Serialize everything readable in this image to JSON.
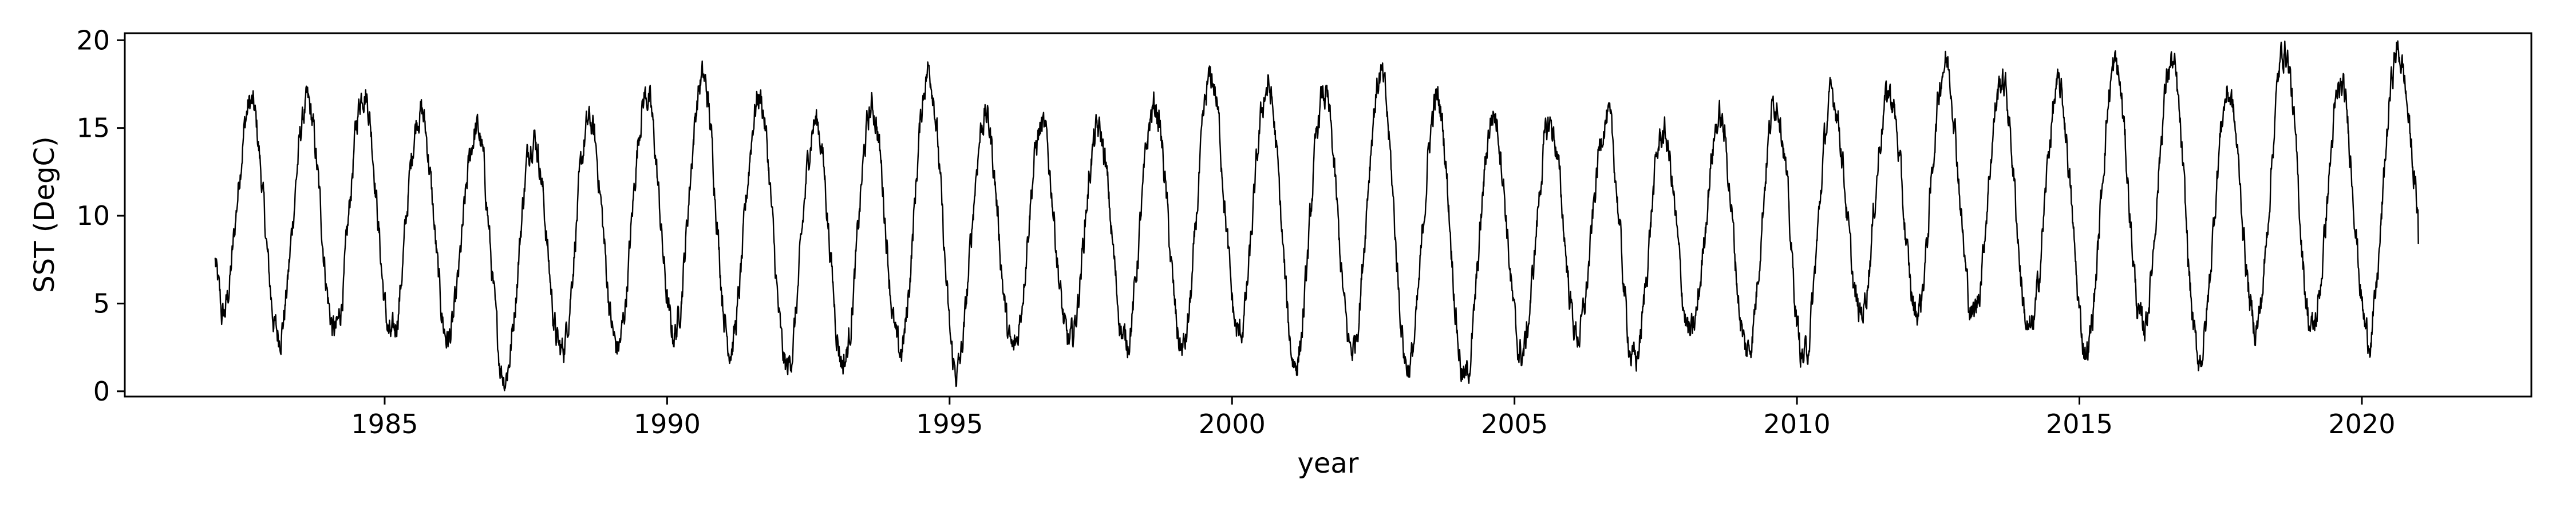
{
  "chart_data": {
    "type": "line",
    "title": "",
    "xlabel": "year",
    "ylabel": "SST (DegC)",
    "xlim": [
      1980.4,
      2023.0
    ],
    "ylim": [
      -0.3,
      20.4
    ],
    "x_ticks": [
      1985,
      1990,
      1995,
      2000,
      2005,
      2010,
      2015,
      2020
    ],
    "x_tick_labels": [
      "1985",
      "1990",
      "1995",
      "2000",
      "2005",
      "2010",
      "2015",
      "2020"
    ],
    "y_ticks": [
      0,
      5,
      10,
      15,
      20
    ],
    "y_tick_labels": [
      "0",
      "5",
      "10",
      "15",
      "20"
    ],
    "grid": false,
    "legend": "none",
    "line_color": "#000000",
    "series": [
      {
        "x_start": 1982.0,
        "x_end": 2021.0,
        "peak_month_fraction": 0.63,
        "annual_maxima": [
          {
            "year": 1982,
            "value": 16.4
          },
          {
            "year": 1983,
            "value": 16.3
          },
          {
            "year": 1984,
            "value": 17.2
          },
          {
            "year": 1985,
            "value": 16.0
          },
          {
            "year": 1986,
            "value": 14.9
          },
          {
            "year": 1987,
            "value": 14.6
          },
          {
            "year": 1988,
            "value": 15.3
          },
          {
            "year": 1989,
            "value": 16.9
          },
          {
            "year": 1990,
            "value": 17.8
          },
          {
            "year": 1991,
            "value": 16.8
          },
          {
            "year": 1992,
            "value": 15.4
          },
          {
            "year": 1993,
            "value": 16.1
          },
          {
            "year": 1994,
            "value": 18.3
          },
          {
            "year": 1995,
            "value": 15.7
          },
          {
            "year": 1996,
            "value": 15.0
          },
          {
            "year": 1997,
            "value": 14.8
          },
          {
            "year": 1998,
            "value": 16.2
          },
          {
            "year": 1999,
            "value": 17.8
          },
          {
            "year": 2000,
            "value": 17.3
          },
          {
            "year": 2001,
            "value": 16.9
          },
          {
            "year": 2002,
            "value": 17.9
          },
          {
            "year": 2003,
            "value": 16.6
          },
          {
            "year": 2004,
            "value": 15.8
          },
          {
            "year": 2005,
            "value": 15.2
          },
          {
            "year": 2006,
            "value": 15.6
          },
          {
            "year": 2007,
            "value": 14.7
          },
          {
            "year": 2008,
            "value": 15.5
          },
          {
            "year": 2009,
            "value": 16.6
          },
          {
            "year": 2010,
            "value": 16.8
          },
          {
            "year": 2011,
            "value": 17.0
          },
          {
            "year": 2012,
            "value": 18.8
          },
          {
            "year": 2013,
            "value": 17.7
          },
          {
            "year": 2014,
            "value": 17.2
          },
          {
            "year": 2015,
            "value": 18.5
          },
          {
            "year": 2016,
            "value": 18.7
          },
          {
            "year": 2017,
            "value": 17.0
          },
          {
            "year": 2018,
            "value": 19.5
          },
          {
            "year": 2019,
            "value": 17.2
          },
          {
            "year": 2020,
            "value": 19.3
          }
        ],
        "annual_minima": [
          {
            "year": 1982,
            "value": 4.2
          },
          {
            "year": 1983,
            "value": 3.2
          },
          {
            "year": 1984,
            "value": 3.4
          },
          {
            "year": 1985,
            "value": 3.0
          },
          {
            "year": 1986,
            "value": 3.0
          },
          {
            "year": 1987,
            "value": 0.9
          },
          {
            "year": 1988,
            "value": 2.3
          },
          {
            "year": 1989,
            "value": 2.5
          },
          {
            "year": 1990,
            "value": 3.3
          },
          {
            "year": 1991,
            "value": 2.6
          },
          {
            "year": 1992,
            "value": 1.3
          },
          {
            "year": 1993,
            "value": 1.7
          },
          {
            "year": 1994,
            "value": 2.2
          },
          {
            "year": 1995,
            "value": 1.1
          },
          {
            "year": 1996,
            "value": 2.3
          },
          {
            "year": 1997,
            "value": 2.7
          },
          {
            "year": 1998,
            "value": 2.8
          },
          {
            "year": 1999,
            "value": 2.4
          },
          {
            "year": 2000,
            "value": 3.2
          },
          {
            "year": 2001,
            "value": 1.6
          },
          {
            "year": 2002,
            "value": 2.4
          },
          {
            "year": 2003,
            "value": 1.4
          },
          {
            "year": 2004,
            "value": 0.7
          },
          {
            "year": 2005,
            "value": 2.1
          },
          {
            "year": 2006,
            "value": 3.2
          },
          {
            "year": 2007,
            "value": 1.7
          },
          {
            "year": 2008,
            "value": 3.2
          },
          {
            "year": 2009,
            "value": 2.3
          },
          {
            "year": 2010,
            "value": 1.9
          },
          {
            "year": 2011,
            "value": 4.4
          },
          {
            "year": 2012,
            "value": 4.5
          },
          {
            "year": 2013,
            "value": 4.4
          },
          {
            "year": 2014,
            "value": 3.3
          },
          {
            "year": 2015,
            "value": 2.4
          },
          {
            "year": 2016,
            "value": 3.6
          },
          {
            "year": 2017,
            "value": 1.9
          },
          {
            "year": 2018,
            "value": 3.7
          },
          {
            "year": 2019,
            "value": 3.5
          },
          {
            "year": 2020,
            "value": 3.1
          },
          {
            "year": 2021,
            "value": 8.4
          }
        ]
      }
    ]
  }
}
